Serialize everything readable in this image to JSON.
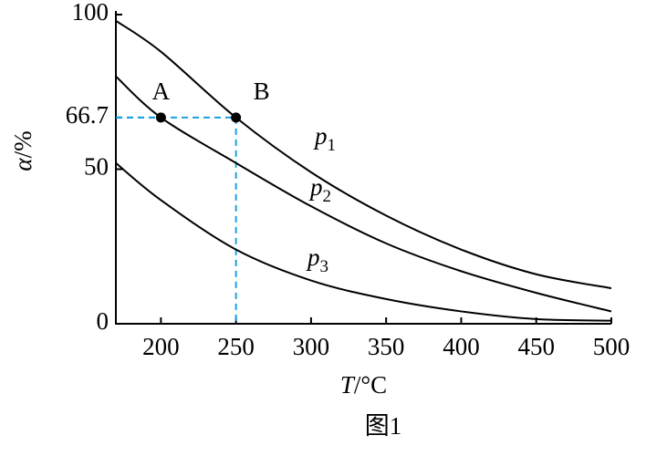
{
  "chart_data": {
    "type": "line",
    "x_label": "T/°C",
    "y_label": "α/%",
    "caption": "图1",
    "xlim": [
      170,
      500
    ],
    "xticks": [
      200,
      250,
      300,
      350,
      400,
      450,
      500
    ],
    "ylim": [
      0,
      100
    ],
    "yticks": [
      0,
      50,
      66.7,
      100
    ],
    "x": [
      170,
      200,
      250,
      300,
      350,
      400,
      450,
      500
    ],
    "series": [
      {
        "name": "p1",
        "color": "#000000",
        "values": [
          98,
          88,
          66.7,
          49,
          35,
          24,
          16,
          11.5
        ]
      },
      {
        "name": "p2",
        "color": "#000000",
        "values": [
          80,
          66.7,
          52,
          38,
          26,
          17,
          10,
          4
        ]
      },
      {
        "name": "p3",
        "color": "#000000",
        "values": [
          52,
          40,
          24,
          14,
          8,
          4,
          1.5,
          1
        ]
      }
    ],
    "points": [
      {
        "label": "A",
        "x": 200,
        "y": 66.7
      },
      {
        "label": "B",
        "x": 250,
        "y": 66.7
      }
    ],
    "reference_color": "#1aa0e0"
  }
}
